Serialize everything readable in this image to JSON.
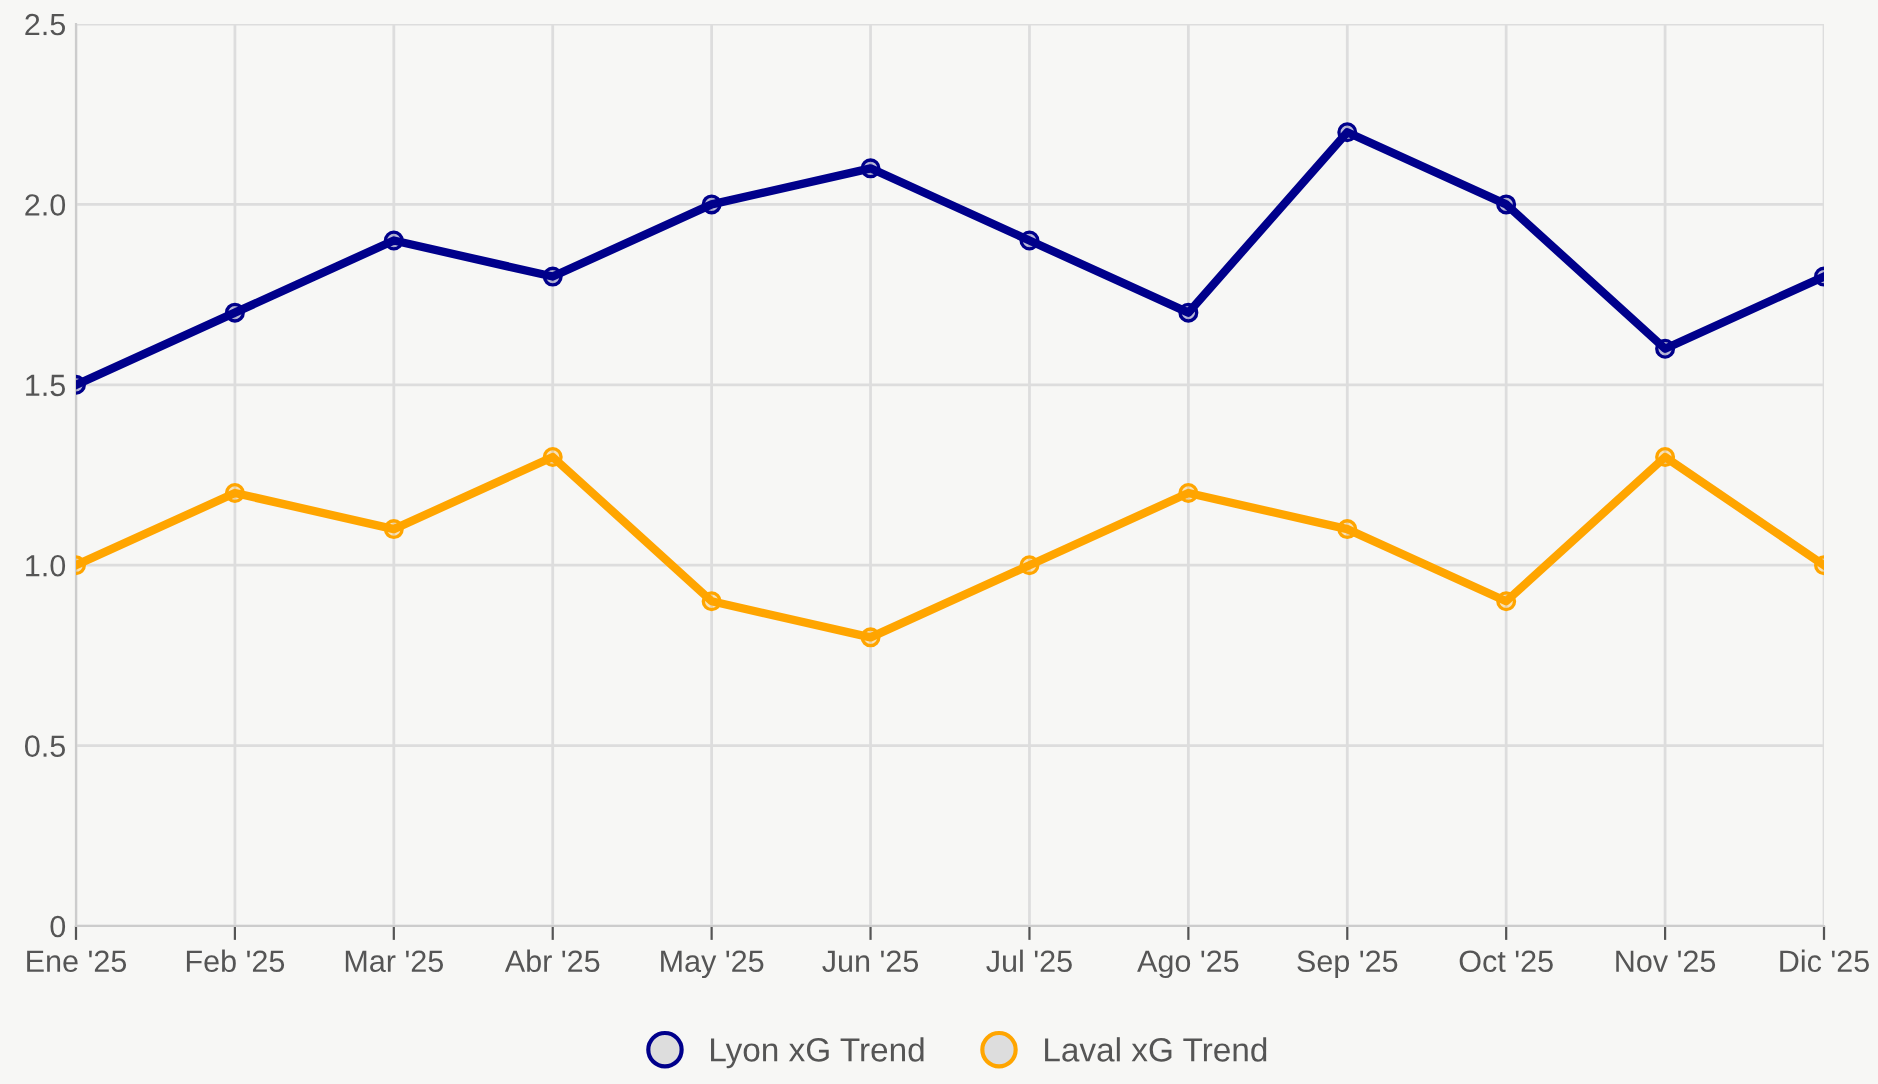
{
  "chart_data": {
    "type": "line",
    "categories": [
      "Ene '25",
      "Feb '25",
      "Mar '25",
      "Abr '25",
      "May '25",
      "Jun '25",
      "Jul '25",
      "Ago '25",
      "Sep '25",
      "Oct '25",
      "Nov '25",
      "Dic '25"
    ],
    "series": [
      {
        "name": "Lyon xG Trend",
        "color": "#00008b",
        "values": [
          1.5,
          1.7,
          1.9,
          1.8,
          2.0,
          2.1,
          1.9,
          1.7,
          2.2,
          2.0,
          1.6,
          1.8
        ]
      },
      {
        "name": "Laval xG Trend",
        "color": "#ffa500",
        "values": [
          1.0,
          1.2,
          1.1,
          1.3,
          0.9,
          0.8,
          1.0,
          1.2,
          1.1,
          0.9,
          1.3,
          1.0
        ]
      }
    ],
    "ylim": [
      0,
      2.5
    ],
    "yticks": [
      0,
      {
        "value": 0.5,
        "label": "0.5"
      },
      {
        "value": 1.0,
        "label": "1.0"
      },
      {
        "value": 1.5,
        "label": "1.5"
      },
      {
        "value": 2.0,
        "label": "2.0"
      },
      {
        "value": 2.5,
        "label": "2.5"
      }
    ],
    "grid": true,
    "legend": "bottom",
    "marker": "circle",
    "line_style": "solid"
  }
}
